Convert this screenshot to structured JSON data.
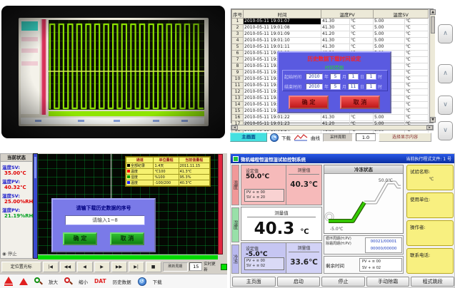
{
  "photo": {
    "wave_cycles": 17,
    "wave_color": "#8ae000"
  },
  "hist_table": {
    "headers": {
      "no": "序号",
      "time": "时间",
      "pv": "温度PV",
      "sv": "温度SV"
    },
    "unit": "℃",
    "rows": [
      {
        "no": "1",
        "time": "2010-05-11 19:01:07",
        "pv": "41.30",
        "sv": "5.00"
      },
      {
        "no": "2",
        "time": "2010-05-11 19:01:08",
        "pv": "41.30",
        "sv": "5.00"
      },
      {
        "no": "3",
        "time": "2010-05-11 19:01:09",
        "pv": "41.20",
        "sv": "5.00"
      },
      {
        "no": "4",
        "time": "2010-05-11 19:01:10",
        "pv": "41.30",
        "sv": "5.00"
      },
      {
        "no": "5",
        "time": "2010-05-11 19:01:11",
        "pv": "41.30",
        "sv": "5.00"
      },
      {
        "no": "6",
        "time": "2010-05-11 19:01:12",
        "pv": "41.30",
        "sv": "5.00"
      },
      {
        "no": "7",
        "time": "2010-05-11 19:01:13",
        "pv": "41.30",
        "sv": "5.00"
      },
      {
        "no": "8",
        "time": "2010-05-11 19:01:14",
        "pv": "41.30",
        "sv": "5.00"
      },
      {
        "no": "9",
        "time": "2010-05-11 19:01:15",
        "pv": "41.30",
        "sv": "5.00"
      },
      {
        "no": "10",
        "time": "2010-05-11 19:01:16",
        "pv": "41.40",
        "sv": "5.00"
      },
      {
        "no": "11",
        "time": "2010-05-11 19:01:17",
        "pv": "41.30",
        "sv": "5.00"
      },
      {
        "no": "12",
        "time": "2010-05-11 19:01:18",
        "pv": "41.30",
        "sv": "5.00"
      },
      {
        "no": "13",
        "time": "2010-05-11 19:01:19",
        "pv": "41.30",
        "sv": "5.00"
      },
      {
        "no": "14",
        "time": "2010-05-11 19:01:20",
        "pv": "41.30",
        "sv": "5.00"
      },
      {
        "no": "15",
        "time": "2010-05-11 19:01:21",
        "pv": "41.20",
        "sv": "5.00"
      },
      {
        "no": "16",
        "time": "2010-05-11 19:01:22",
        "pv": "41.30",
        "sv": "5.00"
      },
      {
        "no": "17",
        "time": "2010-05-11 19:01:23",
        "pv": "41.20",
        "sv": "5.00"
      },
      {
        "no": "18",
        "time": "2010-05-11 19:01:24",
        "pv": "41.30",
        "sv": "5.00"
      }
    ],
    "scroll_buttons": [
      "∧",
      "∧",
      "∨",
      "∨"
    ],
    "dialog": {
      "title": "历史数据下载时间设定",
      "subtitle": "时间范围",
      "start_label": "起始时间",
      "end_label": "结束时间",
      "start_fields": [
        "2010",
        "5",
        "1",
        "1"
      ],
      "end_fields": [
        "2010",
        "5",
        "11",
        "1"
      ],
      "units": [
        "年",
        "月",
        "日",
        "时"
      ],
      "ok": "确 定",
      "cancel": "取 消"
    },
    "toolbar": {
      "home": "主画面",
      "download": "下载",
      "curve": "曲线",
      "period_label": "采样周期",
      "period_value": "1.0",
      "select_btn": "选择显示内容"
    }
  },
  "hmi": {
    "sidebar": {
      "title": "当前状态",
      "items": [
        {
          "label": "温度SV:",
          "value": "35.00℃",
          "green": false
        },
        {
          "label": "温度PV:",
          "value": "40.32℃",
          "green": false
        },
        {
          "label": "湿度SV:",
          "value": "25.00%RH",
          "green": false
        },
        {
          "label": "湿度PV:",
          "value": "21.19%RH",
          "green": true
        }
      ],
      "status": "停止"
    },
    "legend": {
      "headers": [
        "通道",
        "单位量程",
        "当前值量程"
      ],
      "rows": [
        {
          "mark": "#000000",
          "name": "全部纪录",
          "range": "1.4天",
          "value": "2011.11.15"
        },
        {
          "mark": "#ff0000",
          "name": "温度",
          "range": "℃100",
          "value": "41.3℃"
        },
        {
          "mark": "#00a000",
          "name": "湿度",
          "range": "%100",
          "value": "95.3%"
        },
        {
          "mark": "#2020ff",
          "name": "温度",
          "range": "-100/200",
          "value": "40.3℃"
        }
      ]
    },
    "dialog": {
      "message": "请输下载历史数据的序号",
      "input_value": "请输入1~8",
      "ok": "确 定",
      "cancel": "取 消"
    },
    "nav": {
      "locate_btn": "定位置光标",
      "buttons": [
        "|◀",
        "◀◀",
        "◀",
        "▶",
        "▶▶",
        "▶|",
        "■"
      ],
      "refresh_label": "刷新周期",
      "refresh_value": "15",
      "live_label": "实时更新"
    },
    "toolbar": {
      "zoom_in": "放大",
      "zoom_out": "缩小",
      "dat": "DAT",
      "history": "历史数据",
      "download": "下载"
    }
  },
  "controller": {
    "title_left": "微机编程恒温恒湿试验控制系统",
    "title_right": "当前执行程式文件: 1 号",
    "tabs": [
      {
        "label": "温度",
        "color": "#f09898"
      },
      {
        "label": "湿度",
        "color": "#98e0a8"
      },
      {
        "label": "冷冻",
        "color": "#b8b8ee"
      }
    ],
    "temp_panel": {
      "set_label": "设定值",
      "set_value": "50.0℃",
      "meas_label": "测量值",
      "meas_value": "40.3℃",
      "pv_row": "PV + ≡ 00",
      "sv_row": "SV + ≡ 20"
    },
    "main_panel": {
      "label": "测量值",
      "value": "40.3",
      "unit": "℃"
    },
    "low_panel": {
      "set_label": "设定值",
      "set_value": "-5.0℃",
      "meas_label": "测量值",
      "meas_value": "33.6℃",
      "pv_row": "PV + ≡ 00",
      "sv_row": "SV + ≡ 02"
    },
    "chart": {
      "header": "冷冻状态",
      "high_label": "50.0℃",
      "low_label": "-5.0℃",
      "profile_done": [
        [
          6,
          66
        ],
        [
          40,
          66
        ],
        [
          56,
          40
        ]
      ],
      "profile_todo": [
        [
          56,
          40
        ],
        [
          72,
          40
        ],
        [
          88,
          12
        ],
        [
          99,
          12
        ],
        [
          103,
          18
        ],
        [
          107,
          18
        ]
      ]
    },
    "info": {
      "cycle_label": "循环周期(H:PV)",
      "cycle_value": "00021/00001",
      "defrost_label": "除霜周期(H:PV)",
      "defrost_value": "00000/00000",
      "remain_label": "剩余时间",
      "remain_pv": "PV + ≡ 00",
      "remain_sv": "SV + ≡ 02"
    },
    "side_buttons": [
      {
        "label": "试验名称:",
        "value": "℃"
      },
      {
        "label": "使用单位:",
        "value": ""
      },
      {
        "label": "操作者:",
        "value": ""
      },
      {
        "label": "联系电话:",
        "value": ""
      }
    ],
    "bottom_buttons": [
      "主页面",
      "启动",
      "停止",
      "手动除霜",
      "程式跳段"
    ]
  }
}
